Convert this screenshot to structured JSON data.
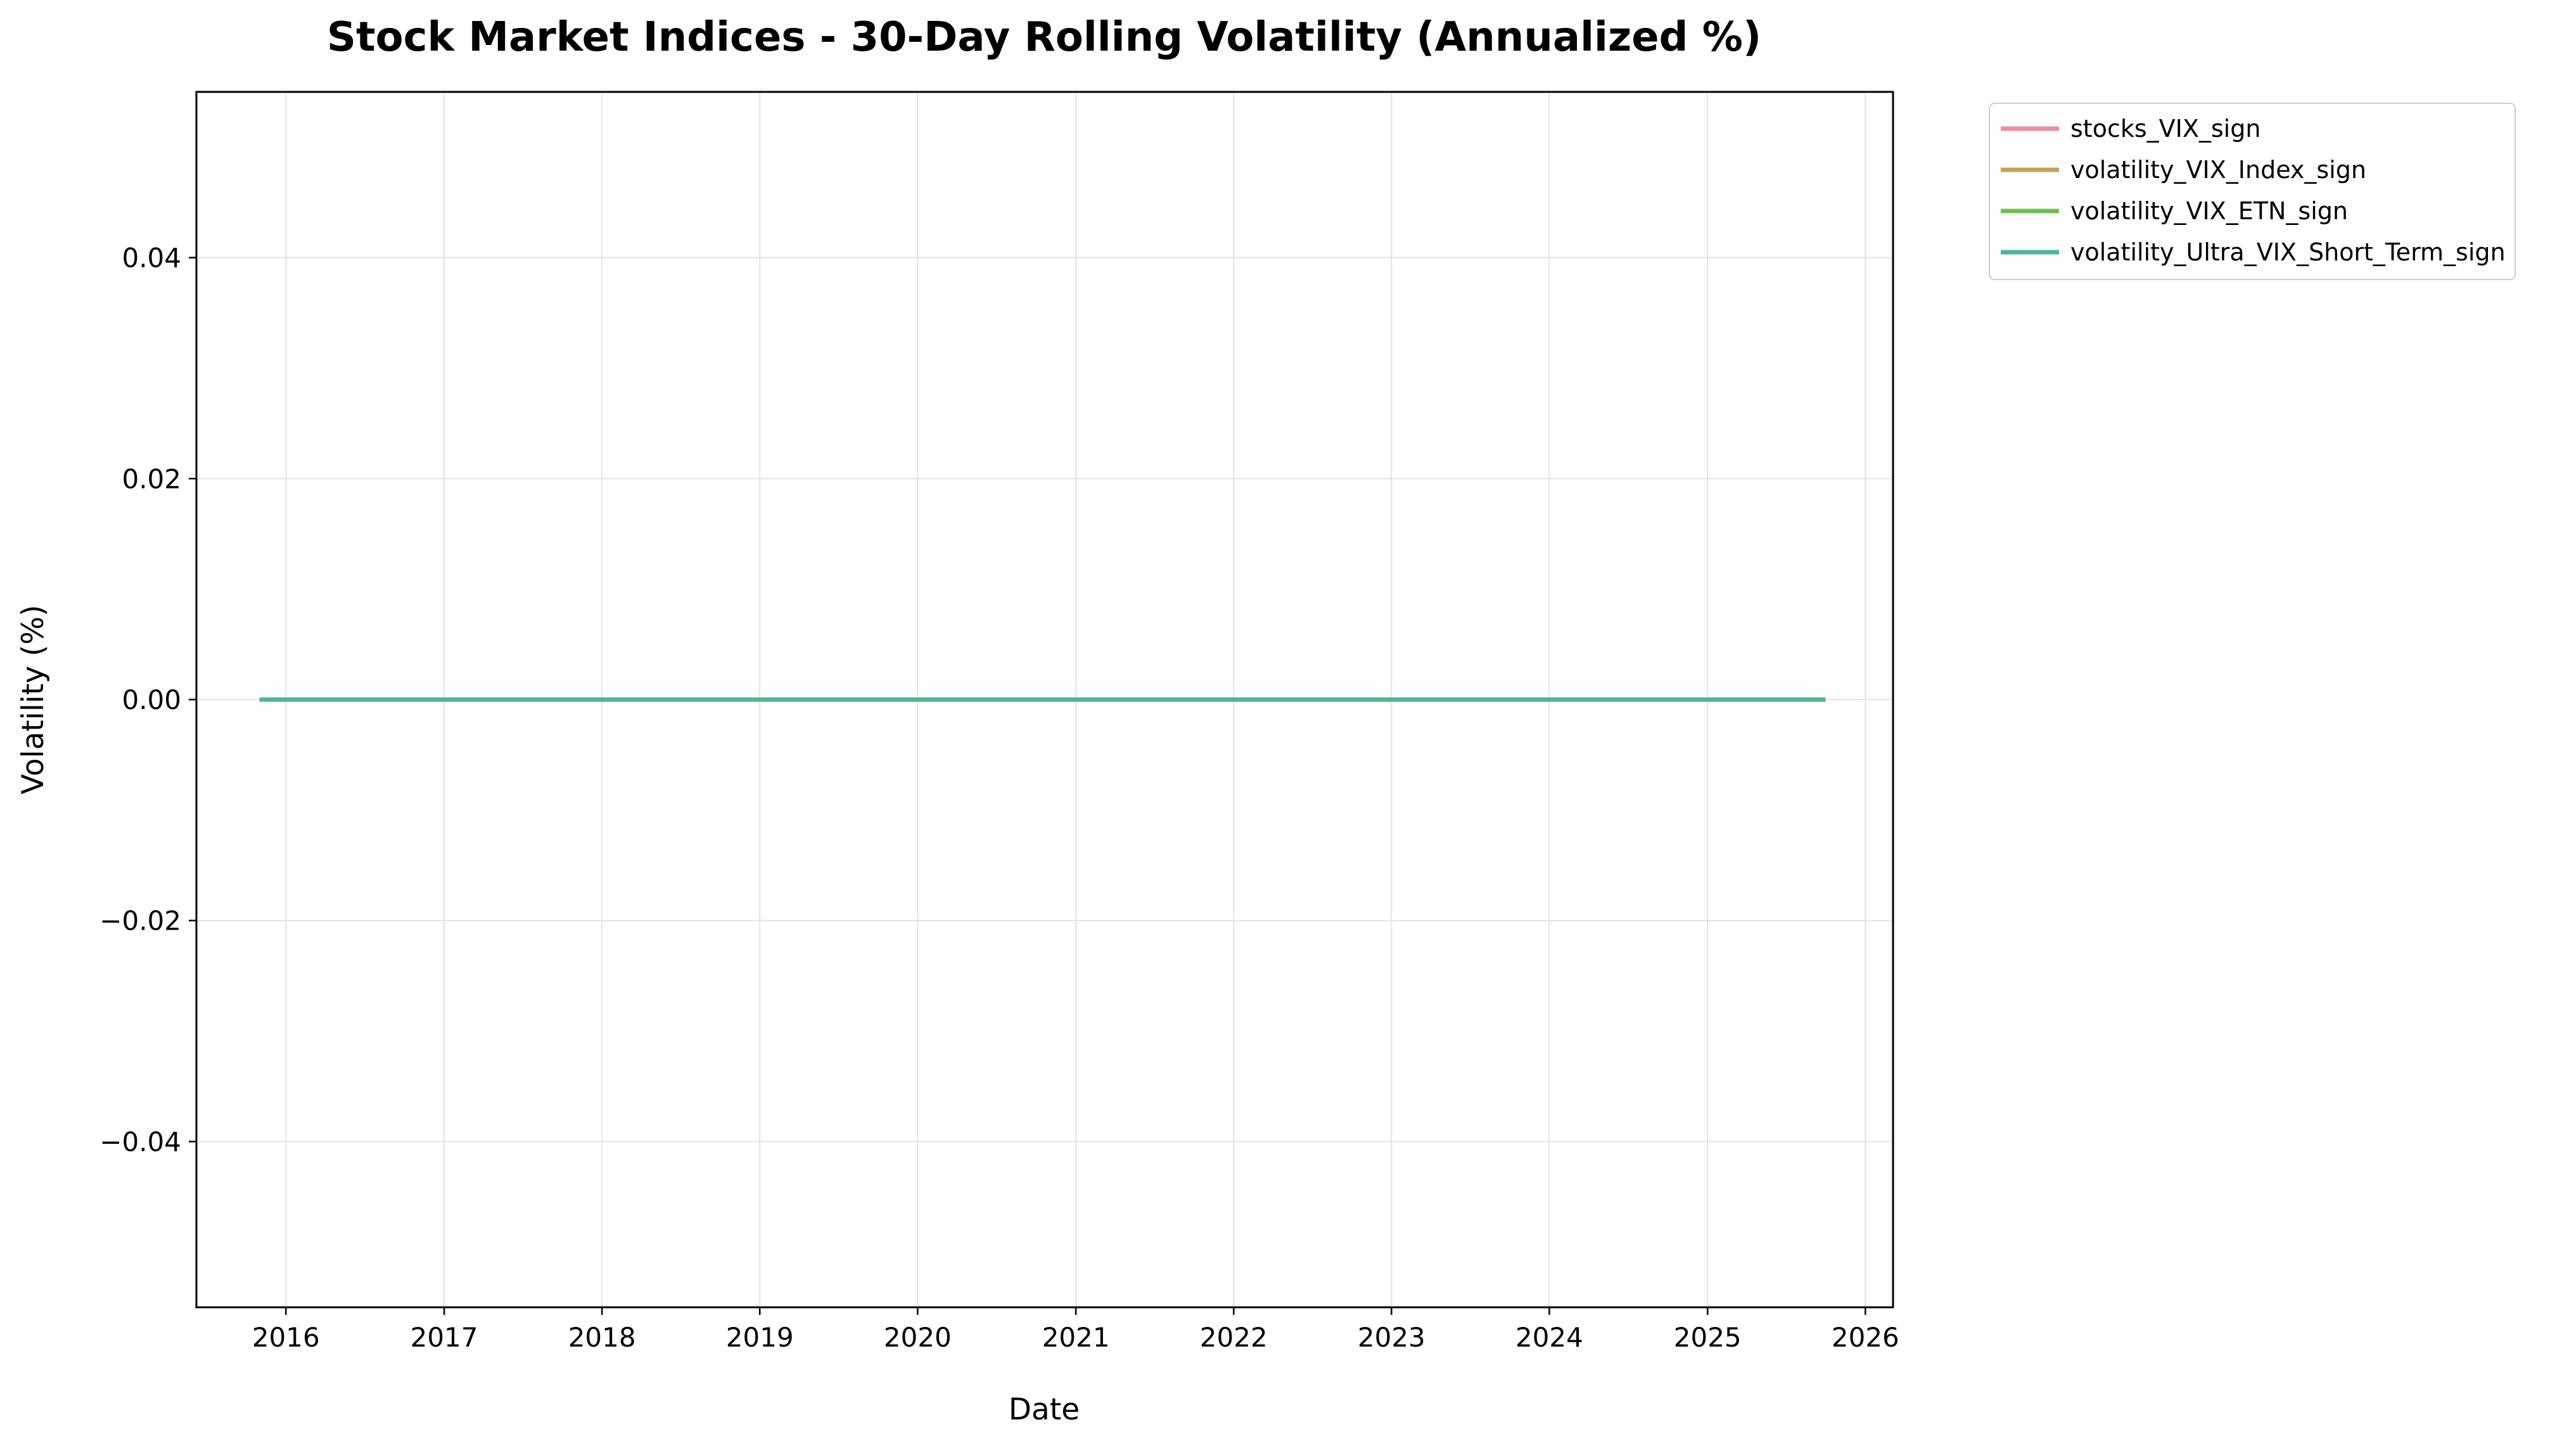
{
  "chart_data": {
    "type": "line",
    "title": "Stock Market Indices - 30-Day Rolling Volatility (Annualized %)",
    "xlabel": "Date",
    "ylabel": "Volatility (%)",
    "x_axis_type": "date",
    "xlim": [
      "2015-06-08",
      "2026-03-06"
    ],
    "ylim": [
      -0.055,
      0.055
    ],
    "x_ticks": [
      "2016",
      "2017",
      "2018",
      "2019",
      "2020",
      "2021",
      "2022",
      "2023",
      "2024",
      "2025",
      "2026"
    ],
    "y_ticks": [
      -0.04,
      -0.02,
      0.0,
      0.02,
      0.04
    ],
    "y_tick_labels": [
      "−0.04",
      "−0.02",
      "0.00",
      "0.02",
      "0.04"
    ],
    "grid": true,
    "legend_placement": "outside-upper-right",
    "x": [
      "2015-11-01",
      "2025-10-01"
    ],
    "series": [
      {
        "name": "stocks_VIX_sign",
        "color": "#f28ba0",
        "values": [
          0,
          0
        ]
      },
      {
        "name": "volatility_VIX_Index_sign",
        "color": "#c9a053",
        "values": [
          0,
          0
        ]
      },
      {
        "name": "volatility_VIX_ETN_sign",
        "color": "#6cbf4f",
        "values": [
          0,
          0
        ]
      },
      {
        "name": "volatility_Ultra_VIX_Short_Term_sign",
        "color": "#4bb3a3",
        "values": [
          0,
          0
        ]
      }
    ]
  }
}
